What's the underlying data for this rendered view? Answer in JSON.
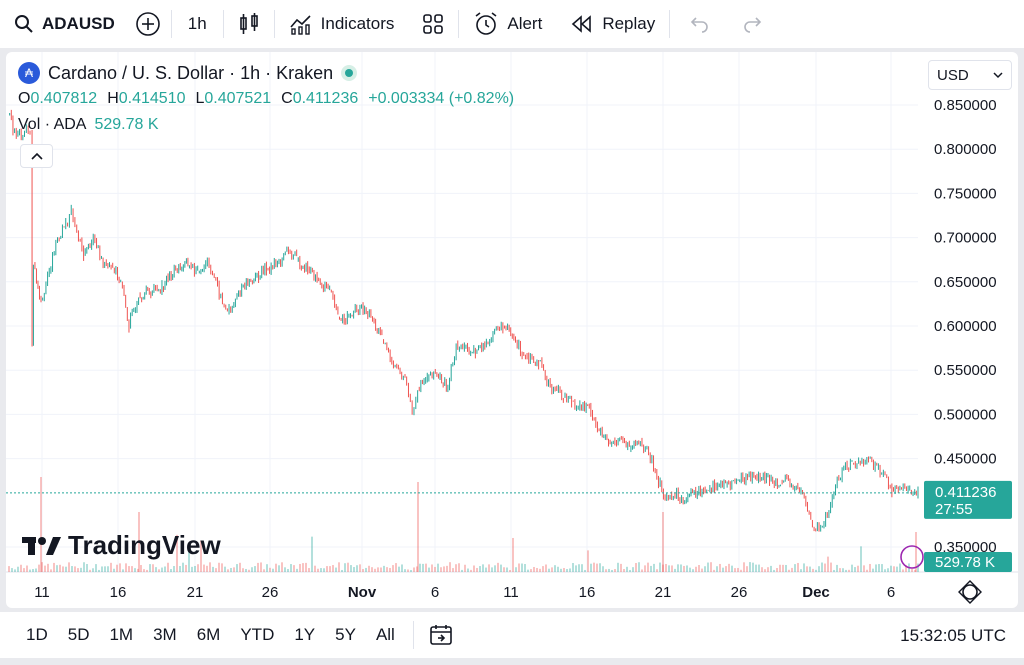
{
  "toolbar": {
    "symbol": "ADAUSD",
    "interval": "1h",
    "indicators": "Indicators",
    "alert": "Alert",
    "replay": "Replay"
  },
  "legend": {
    "title": "Cardano / U. S. Dollar · 1h · Kraken",
    "coin_glyph": "₳",
    "O": "0.407812",
    "H": "0.414510",
    "L": "0.407521",
    "C": "0.411236",
    "change": "+0.003334 (+0.82%)",
    "vol_label": "Vol · ADA",
    "vol_value": "529.78 K",
    "currency": "USD"
  },
  "price_tag": {
    "price": "0.411236",
    "countdown": "27:55",
    "volume": "529.78 K"
  },
  "logo_text": "TradingView",
  "bottom": {
    "ranges": [
      "1D",
      "5D",
      "1M",
      "3M",
      "6M",
      "YTD",
      "1Y",
      "5Y",
      "All"
    ],
    "time": "15:32:05 UTC"
  },
  "colors": {
    "up": "#26a69a",
    "down": "#ef5350",
    "accent": "#2962ff"
  },
  "chart_data": {
    "type": "line",
    "title": "Cardano / U. S. Dollar · 1h · Kraken",
    "x_ticks": [
      "11",
      "16",
      "21",
      "26",
      "Nov",
      "6",
      "11",
      "16",
      "21",
      "26",
      "Dec",
      "6"
    ],
    "y_ticks": [
      "0.850000",
      "0.800000",
      "0.750000",
      "0.700000",
      "0.650000",
      "0.600000",
      "0.550000",
      "0.500000",
      "0.450000",
      "0.350000"
    ],
    "ylim": [
      0.33,
      0.87
    ],
    "grid": true,
    "series": [
      {
        "values": [
          [
            0,
            0.84
          ],
          [
            0.6,
            0.815
          ],
          [
            1.2,
            0.82
          ],
          [
            1.6,
            0.82
          ],
          [
            1.75,
            0.58
          ],
          [
            1.85,
            0.67
          ],
          [
            2.4,
            0.63
          ],
          [
            3,
            0.66
          ],
          [
            3.6,
            0.7
          ],
          [
            4.2,
            0.715
          ],
          [
            4.6,
            0.73
          ],
          [
            5,
            0.705
          ],
          [
            5.5,
            0.68
          ],
          [
            6.2,
            0.7
          ],
          [
            6.8,
            0.675
          ],
          [
            7.5,
            0.67
          ],
          [
            8.2,
            0.65
          ],
          [
            8.8,
            0.6
          ],
          [
            9.5,
            0.635
          ],
          [
            10.5,
            0.64
          ],
          [
            11.2,
            0.645
          ],
          [
            12.2,
            0.665
          ],
          [
            13.2,
            0.67
          ],
          [
            13.8,
            0.66
          ],
          [
            14.5,
            0.675
          ],
          [
            15,
            0.655
          ],
          [
            15.6,
            0.625
          ],
          [
            16.2,
            0.615
          ],
          [
            17,
            0.645
          ],
          [
            18,
            0.655
          ],
          [
            18.8,
            0.665
          ],
          [
            19.6,
            0.67
          ],
          [
            20.4,
            0.685
          ],
          [
            21,
            0.675
          ],
          [
            21.8,
            0.665
          ],
          [
            22.6,
            0.65
          ],
          [
            23.4,
            0.64
          ],
          [
            24,
            0.61
          ],
          [
            24.8,
            0.61
          ],
          [
            25.6,
            0.62
          ],
          [
            26.4,
            0.61
          ],
          [
            27.2,
            0.585
          ],
          [
            27.8,
            0.565
          ],
          [
            28.4,
            0.55
          ],
          [
            29,
            0.535
          ],
          [
            29.4,
            0.5
          ],
          [
            29.8,
            0.53
          ],
          [
            30.5,
            0.54
          ],
          [
            31.2,
            0.545
          ],
          [
            32,
            0.53
          ],
          [
            32.6,
            0.58
          ],
          [
            33.2,
            0.575
          ],
          [
            34,
            0.57
          ],
          [
            34.8,
            0.58
          ],
          [
            35.4,
            0.595
          ],
          [
            36,
            0.6
          ],
          [
            36.8,
            0.585
          ],
          [
            37.4,
            0.57
          ],
          [
            38,
            0.565
          ],
          [
            38.6,
            0.56
          ],
          [
            39.2,
            0.535
          ],
          [
            39.8,
            0.53
          ],
          [
            40.4,
            0.52
          ],
          [
            41,
            0.515
          ],
          [
            41.6,
            0.51
          ],
          [
            42.4,
            0.505
          ],
          [
            43,
            0.48
          ],
          [
            43.8,
            0.465
          ],
          [
            44.5,
            0.475
          ],
          [
            45.2,
            0.46
          ],
          [
            46,
            0.47
          ],
          [
            46.6,
            0.455
          ],
          [
            47.2,
            0.43
          ],
          [
            47.8,
            0.405
          ],
          [
            48.4,
            0.41
          ],
          [
            49,
            0.405
          ],
          [
            49.8,
            0.41
          ],
          [
            50.6,
            0.415
          ],
          [
            51.4,
            0.42
          ],
          [
            52.2,
            0.42
          ],
          [
            53,
            0.425
          ],
          [
            53.8,
            0.43
          ],
          [
            54.6,
            0.43
          ],
          [
            55.4,
            0.425
          ],
          [
            56.2,
            0.425
          ],
          [
            57,
            0.42
          ],
          [
            57.8,
            0.41
          ],
          [
            58.4,
            0.38
          ],
          [
            59,
            0.37
          ],
          [
            59.6,
            0.385
          ],
          [
            60.2,
            0.42
          ],
          [
            60.8,
            0.44
          ],
          [
            61.4,
            0.445
          ],
          [
            62,
            0.445
          ],
          [
            62.6,
            0.45
          ],
          [
            63.2,
            0.44
          ],
          [
            63.8,
            0.43
          ],
          [
            64.3,
            0.415
          ],
          [
            65,
            0.415
          ],
          [
            65.6,
            0.414
          ],
          [
            66.2,
            0.411
          ]
        ]
      }
    ]
  }
}
